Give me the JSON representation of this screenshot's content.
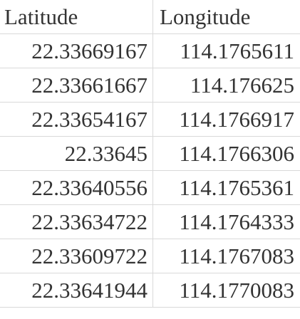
{
  "sheet": {
    "headers": [
      "Latitude",
      "Longitude"
    ],
    "rows": [
      [
        "22.33669167",
        "114.1765611"
      ],
      [
        "22.33661667",
        "114.176625"
      ],
      [
        "22.33654167",
        "114.1766917"
      ],
      [
        "22.33645",
        "114.1766306"
      ],
      [
        "22.33640556",
        "114.1765361"
      ],
      [
        "22.33634722",
        "114.1764333"
      ],
      [
        "22.33609722",
        "114.1767083"
      ],
      [
        "22.33641944",
        "114.1770083"
      ]
    ]
  }
}
